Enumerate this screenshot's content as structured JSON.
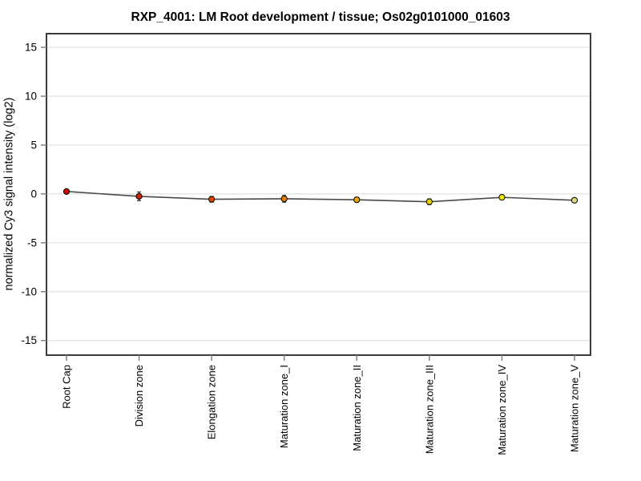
{
  "page": {
    "background_color": "#ffffff"
  },
  "chart_data": {
    "type": "line",
    "title": "RXP_4001: LM Root development / tissue; Os02g0101000_01603",
    "ylabel": "normalized Cy3 signal intensity (log2)",
    "xlabel": "",
    "categories": [
      "Root Cap",
      "Division zone",
      "Elongation zone",
      "Maturation zone_I",
      "Maturation zone_II",
      "Maturation zone_III",
      "Maturation zone_IV",
      "Maturation zone_V"
    ],
    "series": [
      {
        "name": "normalized Cy3 signal intensity (log2)",
        "values": [
          0.25,
          -0.25,
          -0.55,
          -0.5,
          -0.6,
          -0.8,
          -0.35,
          -0.65
        ],
        "errors": [
          0.1,
          0.45,
          0.3,
          0.35,
          0.25,
          0.3,
          0.25,
          0.15
        ],
        "point_colors": [
          "#cc0b00",
          "#d42100",
          "#e04400",
          "#ec7e00",
          "#eea500",
          "#e4d400",
          "#efe800",
          "#ddd878"
        ]
      }
    ],
    "ylim": [
      -16.5,
      16.4
    ],
    "yticks": [
      -15,
      -10,
      -5,
      0,
      5,
      10,
      15
    ],
    "grid": "horizontal-major",
    "legend_position": "none",
    "colors": {
      "line": "#4a4a4a",
      "grid": "#e2e2e2",
      "frame": "#3c3c3c",
      "tick": "#808080",
      "error_bar": "#1a1a1a",
      "text": "#000000",
      "point_stroke": "#000000"
    }
  }
}
